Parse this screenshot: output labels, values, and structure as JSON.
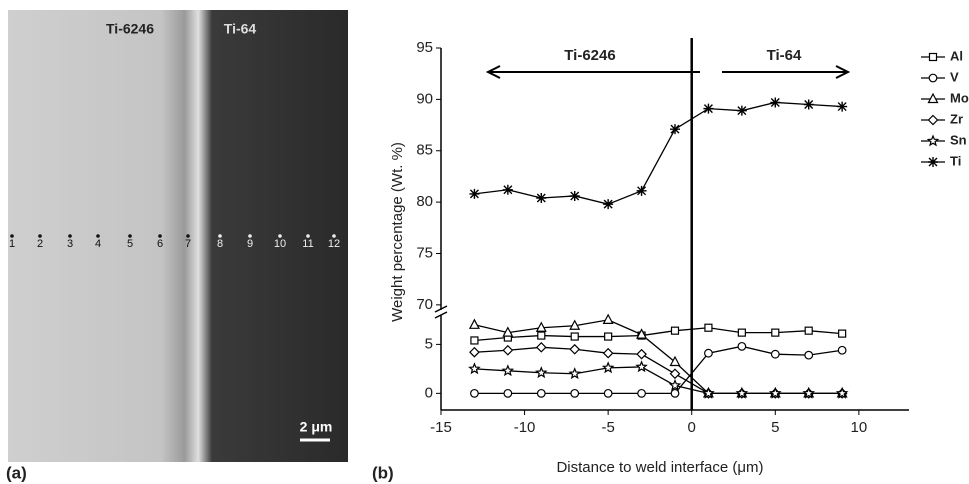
{
  "panel_a": {
    "label": "(a)",
    "regions": [
      "Ti-6246",
      "Ti-64"
    ],
    "points": [
      "1",
      "2",
      "3",
      "4",
      "5",
      "6",
      "7",
      "8",
      "9",
      "10",
      "11",
      "12"
    ],
    "scale_bar": "2 μm"
  },
  "chart_data": {
    "type": "line",
    "panel_label": "(b)",
    "x_label": "Distance to weld interface (μm)",
    "y_label": "Weight percentage (Wt. %)",
    "annotations": [
      "Ti-6246",
      "Ti-64"
    ],
    "x": [
      -13,
      -11,
      -9,
      -7,
      -5,
      -3,
      -1,
      1,
      3,
      5,
      7,
      9
    ],
    "series": [
      {
        "name": "Al",
        "color": "#000000",
        "marker": "square",
        "values": [
          5.4,
          5.7,
          5.9,
          5.8,
          5.8,
          5.9,
          6.4,
          6.7,
          6.2,
          6.2,
          6.4,
          6.1
        ]
      },
      {
        "name": "V",
        "color": "#000000",
        "marker": "circle",
        "values": [
          0,
          0,
          0,
          0,
          0,
          0,
          0,
          4.1,
          4.8,
          4.0,
          3.9,
          4.4
        ]
      },
      {
        "name": "Mo",
        "color": "#000000",
        "marker": "triangle",
        "values": [
          7.0,
          6.2,
          6.7,
          6.9,
          7.5,
          6.0,
          3.2,
          0,
          0,
          0,
          0,
          0
        ]
      },
      {
        "name": "Zr",
        "color": "#000000",
        "marker": "diamond",
        "values": [
          4.2,
          4.4,
          4.7,
          4.5,
          4.1,
          4.0,
          2.0,
          0,
          0,
          0,
          0,
          0
        ]
      },
      {
        "name": "Sn",
        "color": "#000000",
        "marker": "star",
        "values": [
          2.5,
          2.3,
          2.1,
          2.0,
          2.6,
          2.7,
          0.8,
          0,
          0,
          0,
          0,
          0
        ]
      },
      {
        "name": "Ti",
        "color": "#000000",
        "marker": "asterisk",
        "values": [
          80.8,
          81.2,
          80.4,
          80.6,
          79.8,
          81.1,
          87.1,
          89.1,
          88.9,
          89.7,
          89.5,
          89.3
        ]
      }
    ],
    "xlim": [
      -15,
      13
    ],
    "xticks": [
      -15,
      -10,
      -5,
      0,
      5,
      10
    ],
    "ylim": [
      -1.7,
      95
    ],
    "y_break": [
      8,
      69.5
    ],
    "yticks": [
      0,
      5,
      70,
      75,
      80,
      85,
      90,
      95
    ],
    "grid": false
  }
}
